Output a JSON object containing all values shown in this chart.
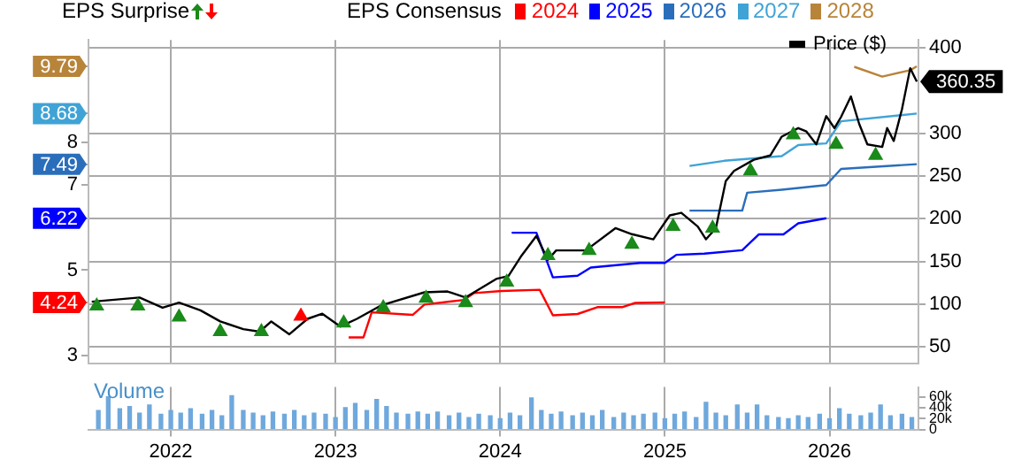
{
  "chart_data": [
    {
      "type": "line",
      "annotations": [
        "EPS Surprise"
      ],
      "legend_title": "EPS Consensus",
      "legend": "top",
      "grid": true,
      "tick_labels": "y",
      "xlim": [
        2021.5,
        2026.54
      ],
      "xticks": [
        2022,
        2023,
        2024,
        2025,
        2026
      ],
      "ylim": [
        31,
        409
      ],
      "yticks": [
        50,
        100,
        150,
        200,
        250,
        300,
        400
      ],
      "y2lim": [
        2.81,
        10.41
      ],
      "y2ticks": [
        3,
        4.24,
        5,
        6.22,
        7,
        7.49,
        8,
        8.68,
        9.79
      ],
      "series": [
        {
          "name": "Price ($)",
          "color": "#000000",
          "x": [
            2021.52,
            2021.81,
            2021.95,
            2022.05,
            2022.18,
            2022.3,
            2022.44,
            2022.54,
            2022.61,
            2022.72,
            2022.83,
            2022.92,
            2023.03,
            2023.13,
            2023.28,
            2023.54,
            2023.68,
            2023.79,
            2023.98,
            2024.05,
            2024.13,
            2024.22,
            2024.29,
            2024.34,
            2024.52,
            2024.7,
            2024.8,
            2024.93,
            2025.03,
            2025.1,
            2025.2,
            2025.25,
            2025.31,
            2025.37,
            2025.42,
            2025.54,
            2025.64,
            2025.71,
            2025.81,
            2025.86,
            2025.92,
            2025.98,
            2026.03,
            2026.07,
            2026.13,
            2026.18,
            2026.23,
            2026.32,
            2026.35,
            2026.39,
            2026.44,
            2026.49,
            2026.53
          ],
          "values": [
            103,
            108,
            96,
            102,
            93,
            80,
            71,
            68,
            80,
            65,
            83,
            89,
            74,
            83,
            99,
            114,
            115,
            108,
            130,
            133,
            157,
            180,
            152,
            163,
            163,
            189,
            182,
            176,
            204,
            207,
            191,
            176,
            189,
            244,
            256,
            269,
            274,
            296,
            306,
            302,
            287,
            320,
            306,
            319,
            343,
            311,
            287,
            284,
            306,
            291,
            328,
            376,
            360.35
          ],
          "value_labels": [
            null,
            null,
            null,
            null,
            null,
            null,
            null,
            null,
            null,
            null,
            null,
            null,
            null,
            null,
            null,
            null,
            null,
            null,
            null,
            null,
            null,
            null,
            null,
            null,
            null,
            null,
            null,
            null,
            null,
            null,
            null,
            null,
            null,
            null,
            null,
            null,
            null,
            null,
            null,
            null,
            null,
            null,
            null,
            null,
            null,
            null,
            null,
            null,
            null,
            null,
            null,
            null,
            "360.35"
          ]
        },
        {
          "name": "2024",
          "color": "#ff0000",
          "axis": "y2",
          "x": [
            2023.08,
            2023.17,
            2023.22,
            2023.47,
            2023.54,
            2023.78,
            2023.84,
            2024.01,
            2024.24,
            2024.32,
            2024.47,
            2024.59,
            2024.74,
            2024.82,
            2025.0
          ],
          "values": [
            3.42,
            3.42,
            4.01,
            3.95,
            4.19,
            4.3,
            4.46,
            4.51,
            4.54,
            3.94,
            3.97,
            4.13,
            4.13,
            4.23,
            4.24
          ]
        },
        {
          "name": "2025",
          "color": "#0000ff",
          "axis": "y2",
          "x": [
            2024.07,
            2024.22,
            2024.32,
            2024.47,
            2024.55,
            2024.85,
            2025.0,
            2025.07,
            2025.24,
            2025.47,
            2025.57,
            2025.72,
            2025.81,
            2025.98
          ],
          "values": [
            5.88,
            5.88,
            4.83,
            4.87,
            5.06,
            5.17,
            5.17,
            5.36,
            5.39,
            5.47,
            5.84,
            5.84,
            6.1,
            6.22
          ]
        },
        {
          "name": "2026",
          "color": "#2a6ebb",
          "axis": "y2",
          "x": [
            2025.15,
            2025.47,
            2025.5,
            2025.71,
            2025.98,
            2026.07,
            2026.53
          ],
          "values": [
            6.4,
            6.4,
            6.82,
            6.89,
            7.0,
            7.38,
            7.49
          ]
        },
        {
          "name": "2027",
          "color": "#3fa3d6",
          "axis": "y2",
          "x": [
            2025.15,
            2025.36,
            2025.71,
            2025.81,
            2025.98,
            2026.07,
            2026.53
          ],
          "values": [
            7.45,
            7.57,
            7.68,
            7.94,
            7.98,
            8.5,
            8.68
          ]
        },
        {
          "name": "2028",
          "color": "#b8843a",
          "axis": "y2",
          "x": [
            2026.15,
            2026.32,
            2026.49,
            2026.53
          ],
          "values": [
            9.78,
            9.55,
            9.7,
            9.79
          ]
        },
        {
          "type": "scatter",
          "marker": "triangle",
          "color": "#1a8a1a",
          "x": [
            2021.55,
            2021.8,
            2022.05,
            2022.3,
            2022.55,
            2023.05,
            2023.29,
            2023.55,
            2023.79,
            2024.04,
            2024.29,
            2024.54,
            2024.8,
            2025.05,
            2025.29,
            2025.52,
            2025.78,
            2026.04,
            2026.28
          ],
          "values": [
            98,
            98,
            85,
            68,
            68,
            78,
            96,
            107,
            102,
            126,
            157,
            163,
            170,
            191,
            189,
            256,
            298,
            287,
            274
          ]
        },
        {
          "type": "scatter",
          "marker": "triangle",
          "color": "#ff0000",
          "x": [
            2022.79
          ],
          "values": [
            86
          ]
        }
      ]
    },
    {
      "type": "bar",
      "title": "Volume",
      "grid": "x",
      "xlim": [
        2021.5,
        2026.54
      ],
      "xticks": [
        2022,
        2023,
        2024,
        2025,
        2026
      ],
      "ylim": [
        0,
        78
      ],
      "yticks": [
        0,
        {
          "value": 20,
          "label": "20k"
        },
        {
          "value": 40,
          "label": "40k"
        },
        {
          "value": 60,
          "label": "60k"
        }
      ],
      "series": [
        {
          "color": "#6fa8dc",
          "x": [
            2021.56,
            2021.62,
            2021.69,
            2021.75,
            2021.81,
            2021.87,
            2021.94,
            2022.0,
            2022.06,
            2022.12,
            2022.19,
            2022.25,
            2022.31,
            2022.37,
            2022.44,
            2022.5,
            2022.56,
            2022.62,
            2022.69,
            2022.75,
            2022.81,
            2022.87,
            2022.94,
            2023.0,
            2023.06,
            2023.12,
            2023.19,
            2023.25,
            2023.31,
            2023.37,
            2023.44,
            2023.5,
            2023.56,
            2023.62,
            2023.69,
            2023.75,
            2023.81,
            2023.87,
            2023.94,
            2024.0,
            2024.06,
            2024.12,
            2024.19,
            2024.25,
            2024.31,
            2024.37,
            2024.44,
            2024.5,
            2024.56,
            2024.62,
            2024.69,
            2024.75,
            2024.81,
            2024.87,
            2024.94,
            2025.0,
            2025.06,
            2025.12,
            2025.19,
            2025.25,
            2025.31,
            2025.37,
            2025.44,
            2025.5,
            2025.56,
            2025.62,
            2025.69,
            2025.75,
            2025.81,
            2025.87,
            2025.94,
            2026.0,
            2026.06,
            2026.12,
            2026.19,
            2026.25,
            2026.31,
            2026.37,
            2026.44,
            2026.5
          ],
          "values": [
            35,
            60,
            38,
            42,
            30,
            45,
            28,
            35,
            30,
            38,
            28,
            35,
            25,
            62,
            35,
            30,
            25,
            32,
            28,
            35,
            25,
            30,
            28,
            22,
            40,
            48,
            35,
            55,
            42,
            30,
            28,
            32,
            28,
            32,
            25,
            30,
            22,
            28,
            25,
            20,
            30,
            25,
            58,
            35,
            28,
            32,
            25,
            30,
            25,
            35,
            22,
            30,
            25,
            28,
            30,
            20,
            28,
            32,
            22,
            50,
            30,
            25,
            45,
            30,
            45,
            25,
            22,
            20,
            25,
            22,
            28,
            20,
            38,
            28,
            25,
            30,
            45,
            25,
            28,
            22
          ]
        }
      ]
    }
  ]
}
